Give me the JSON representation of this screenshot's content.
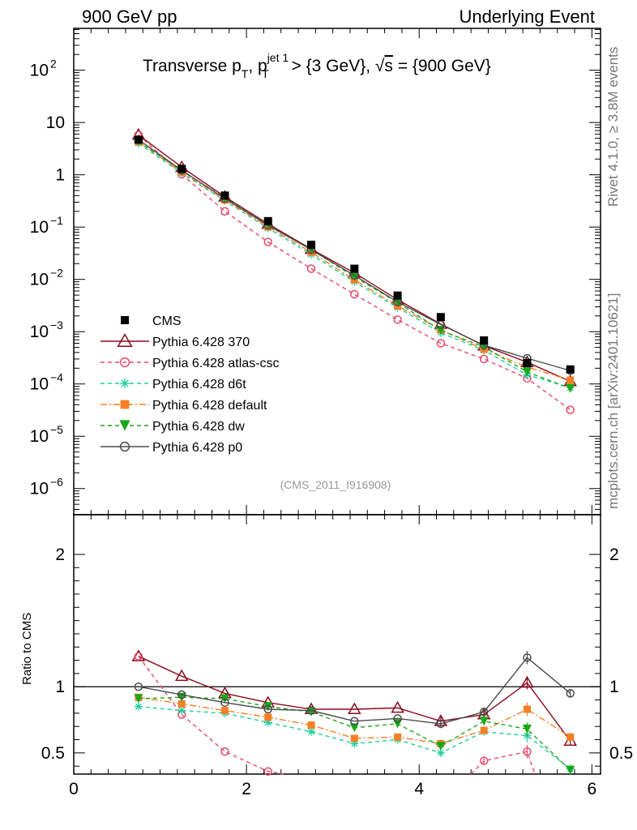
{
  "header": {
    "left": "900 GeV pp",
    "right": "Underlying Event"
  },
  "side": {
    "rivet": "Rivet 4.1.0, ≥ 3.8M events",
    "mcplots": "mcplots.cern.ch [arXiv:2401.10621]"
  },
  "chart_data": {
    "type": "scatter",
    "title_parts": {
      "a": "Transverse p",
      "a_sub": "T",
      "b": ", p",
      "b_sup": "jet 1",
      "b_sub": "T",
      "c": " > {3 GeV}, ",
      "sqrt": "√",
      "s": "s",
      "d": " = {900 GeV}"
    },
    "watermark": "(CMS_2011_I916908)",
    "x": [
      0.75,
      1.25,
      1.75,
      2.25,
      2.75,
      3.25,
      3.75,
      4.25,
      4.75,
      5.25,
      5.75
    ],
    "xlim": [
      0,
      6.1
    ],
    "x_ticks": [
      "0",
      "2",
      "4",
      "6"
    ],
    "x_tick_values": [
      0,
      2,
      4,
      6
    ],
    "main_ylim_log10": [
      -6.5,
      2.8
    ],
    "main_y_ticks": [
      {
        "value": 100,
        "base": "10",
        "exp": "2"
      },
      {
        "value": 10,
        "base": "10",
        "exp": ""
      },
      {
        "value": 1,
        "base": "1",
        "exp": ""
      },
      {
        "value": 0.1,
        "base": "10",
        "exp": "−1"
      },
      {
        "value": 0.01,
        "base": "10",
        "exp": "−2"
      },
      {
        "value": 0.001,
        "base": "10",
        "exp": "−3"
      },
      {
        "value": 0.0001,
        "base": "10",
        "exp": "−4"
      },
      {
        "value": 1e-05,
        "base": "10",
        "exp": "−5"
      },
      {
        "value": 1e-06,
        "base": "10",
        "exp": "−6"
      }
    ],
    "ratio_ylabel": "Ratio to CMS",
    "ratio_ylim": [
      0.34,
      2.3
    ],
    "ratio_y_ticks": [
      {
        "value": 2,
        "label": "2"
      },
      {
        "value": 1,
        "label": "1"
      },
      {
        "value": 0.5,
        "label": "0.5"
      }
    ],
    "data_series": {
      "name": "CMS",
      "color": "#000000",
      "values": [
        4.7,
        1.3,
        0.4,
        0.13,
        0.046,
        0.016,
        0.0049,
        0.0019,
        0.00068,
        0.00025,
        0.00019
      ]
    },
    "series": [
      {
        "name": "Pythia 6.428 370",
        "color": "#8b0a1e",
        "dash": "",
        "marker": "triangle-open",
        "values": [
          5.8,
          1.4,
          0.38,
          0.115,
          0.038,
          0.0133,
          0.0041,
          0.0014,
          0.00054,
          0.00026,
          0.000112
        ],
        "ratio": [
          1.23,
          1.08,
          0.95,
          0.88,
          0.83,
          0.83,
          0.84,
          0.74,
          0.79,
          1.03,
          0.59
        ]
      },
      {
        "name": "Pythia 6.428 atlas-csc",
        "color": "#e84a6a",
        "dash": "5,4",
        "marker": "circle-open",
        "values": [
          5.8,
          1.02,
          0.2,
          0.052,
          0.016,
          0.0052,
          0.0017,
          0.0006,
          0.0003,
          0.000128,
          3.2e-05
        ],
        "ratio": [
          1.23,
          0.79,
          0.51,
          0.36,
          null,
          null,
          null,
          null,
          0.44,
          0.51,
          null
        ],
        "ratio_edge_x": [
          4.6,
          5.26,
          5.34,
          5.38
        ]
      },
      {
        "name": "Pythia 6.428 d6t",
        "color": "#1fcfa0",
        "dash": "5,4",
        "marker": "star",
        "values": [
          4.0,
          1.07,
          0.32,
          0.095,
          0.03,
          0.009,
          0.0029,
          0.00095,
          0.00044,
          0.00015,
          8.5e-05
        ],
        "ratio": [
          0.85,
          0.82,
          0.8,
          0.73,
          0.66,
          0.57,
          0.6,
          0.5,
          0.66,
          0.63,
          0.38
        ]
      },
      {
        "name": "Pythia 6.428 default",
        "color": "#f58025",
        "dash": "8,3,2,3",
        "marker": "square",
        "values": [
          4.3,
          1.13,
          0.33,
          0.101,
          0.033,
          0.0098,
          0.0031,
          0.00108,
          0.00046,
          0.00021,
          0.000118
        ],
        "ratio": [
          0.92,
          0.87,
          0.82,
          0.77,
          0.71,
          0.61,
          0.62,
          0.57,
          0.67,
          0.83,
          0.62
        ]
      },
      {
        "name": "Pythia 6.428 dw",
        "color": "#18a818",
        "dash": "5,4",
        "marker": "triangle-down",
        "values": [
          4.3,
          1.19,
          0.36,
          0.11,
          0.037,
          0.0112,
          0.0036,
          0.00106,
          0.00051,
          0.00017,
          8.2e-05
        ],
        "ratio": [
          0.91,
          0.92,
          0.91,
          0.85,
          0.81,
          0.69,
          0.72,
          0.55,
          0.74,
          0.68,
          0.37
        ]
      },
      {
        "name": "Pythia 6.428 p0",
        "color": "#4a4a4a",
        "dash": "",
        "marker": "circle-open",
        "values": [
          4.7,
          1.22,
          0.35,
          0.108,
          0.037,
          0.0119,
          0.0037,
          0.00137,
          0.00055,
          0.00031,
          0.00018
        ],
        "ratio": [
          1.0,
          0.94,
          0.88,
          0.83,
          0.82,
          0.74,
          0.76,
          0.72,
          0.81,
          1.22,
          0.95
        ]
      }
    ]
  }
}
